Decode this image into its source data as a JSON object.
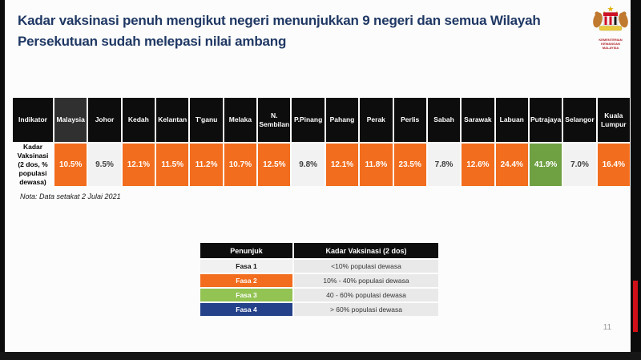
{
  "title_lines": [
    "Kadar vaksinasi penuh mengikut negeri menunjukkan 9 negeri dan semua Wilayah",
    "Persekutuan sudah melepasi nilai ambang"
  ],
  "logo": {
    "line1": "KEMENTERIAN KEWANGAN",
    "line2": "MALAYSIA"
  },
  "table": {
    "indicator_header": "Indikator",
    "row_label": "Kadar Vaksinasi (2 dos, % populasi dewasa)",
    "columns": [
      {
        "state": "Malaysia",
        "value": "10.5%",
        "phase": "fasa2",
        "header_bg": "#303030"
      },
      {
        "state": "Johor",
        "value": "9.5%",
        "phase": "fasa1"
      },
      {
        "state": "Kedah",
        "value": "12.1%",
        "phase": "fasa2"
      },
      {
        "state": "Kelantan",
        "value": "11.5%",
        "phase": "fasa2"
      },
      {
        "state": "T'ganu",
        "value": "11.2%",
        "phase": "fasa2"
      },
      {
        "state": "Melaka",
        "value": "10.7%",
        "phase": "fasa2"
      },
      {
        "state": "N. Sembilan",
        "value": "12.5%",
        "phase": "fasa2"
      },
      {
        "state": "P.Pinang",
        "value": "9.8%",
        "phase": "fasa1"
      },
      {
        "state": "Pahang",
        "value": "12.1%",
        "phase": "fasa2"
      },
      {
        "state": "Perak",
        "value": "11.8%",
        "phase": "fasa2"
      },
      {
        "state": "Perlis",
        "value": "23.5%",
        "phase": "fasa2"
      },
      {
        "state": "Sabah",
        "value": "7.8%",
        "phase": "fasa1"
      },
      {
        "state": "Sarawak",
        "value": "12.6%",
        "phase": "fasa2"
      },
      {
        "state": "Labuan",
        "value": "24.4%",
        "phase": "fasa2"
      },
      {
        "state": "Putrajaya",
        "value": "41.9%",
        "phase": "fasa3"
      },
      {
        "state": "Selangor",
        "value": "7.0%",
        "phase": "fasa1"
      },
      {
        "state": "Kuala Lumpur",
        "value": "16.4%",
        "phase": "fasa2"
      }
    ]
  },
  "note": "Nota: Data setakat 2 Julai 2021",
  "legend": {
    "headers": [
      "Penunjuk",
      "Kadar Vaksinasi (2 dos)"
    ],
    "rows": [
      {
        "label": "Fasa 1",
        "range": "<10% populasi dewasa",
        "bg": "#f1f1f1",
        "fg": "#111111"
      },
      {
        "label": "Fasa 2",
        "range": "10% - 40% populasi dewasa",
        "bg": "#f26d1d",
        "fg": "#ffffff"
      },
      {
        "label": "Fasa 3",
        "range": "40 - 60% populasi dewasa",
        "bg": "#92c353",
        "fg": "#ffffff"
      },
      {
        "label": "Fasa 4",
        "range": "> 60% populasi dewasa",
        "bg": "#24418a",
        "fg": "#ffffff"
      }
    ]
  },
  "page_number": "11",
  "colors": {
    "title": "#1f3864",
    "header_bg": "#0d0d0d",
    "phases": {
      "fasa1": {
        "bg": "#f2f2f2",
        "fg": "#3f3f3f"
      },
      "fasa2": {
        "bg": "#f26d1d",
        "fg": "#ffffff"
      },
      "fasa3": {
        "bg": "#6fa143",
        "fg": "#ffffff"
      }
    },
    "red_bar": "#d01018"
  },
  "chart_data": {
    "type": "table",
    "title": "Kadar Vaksinasi (2 dos, % populasi dewasa)",
    "categories": [
      "Malaysia",
      "Johor",
      "Kedah",
      "Kelantan",
      "T'ganu",
      "Melaka",
      "N. Sembilan",
      "P.Pinang",
      "Pahang",
      "Perak",
      "Perlis",
      "Sabah",
      "Sarawak",
      "Labuan",
      "Putrajaya",
      "Selangor",
      "Kuala Lumpur"
    ],
    "values": [
      10.5,
      9.5,
      12.1,
      11.5,
      11.2,
      10.7,
      12.5,
      9.8,
      12.1,
      11.8,
      23.5,
      7.8,
      12.6,
      24.4,
      41.9,
      7.0,
      16.4
    ],
    "unit": "% populasi dewasa",
    "note": "Nota: Data setakat 2 Julai 2021"
  }
}
